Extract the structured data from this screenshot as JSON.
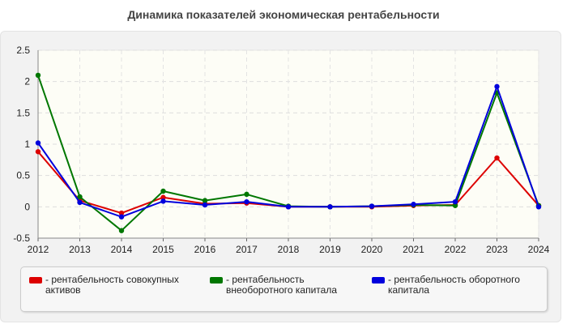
{
  "chart_data": {
    "type": "line",
    "title": "Динамика показателей экономическая рентабельности",
    "xlabel": "",
    "ylabel": "",
    "x": [
      "2012",
      "2013",
      "2014",
      "2015",
      "2016",
      "2017",
      "2018",
      "2019",
      "2020",
      "2021",
      "2022",
      "2023",
      "2024"
    ],
    "ylim": [
      -0.5,
      2.5
    ],
    "yticks": [
      "2.5",
      "2",
      "1.5",
      "1",
      "0.5",
      "0",
      "-0.5"
    ],
    "yticks_values": [
      2.5,
      2,
      1.5,
      1,
      0.5,
      0,
      -0.5
    ],
    "grid": true,
    "legend_position": "bottom",
    "series": [
      {
        "name": "- рентабельность совокупных\nактивов",
        "color": "#dd0000",
        "values": [
          0.88,
          0.1,
          -0.1,
          0.15,
          0.05,
          0.06,
          0.0,
          0.0,
          0.0,
          0.02,
          0.03,
          0.78,
          0.02
        ]
      },
      {
        "name": "- рентабельность\nвнеоборотного капитала",
        "color": "#007700",
        "values": [
          2.1,
          0.16,
          -0.38,
          0.25,
          0.1,
          0.2,
          0.01,
          0.0,
          0.01,
          0.03,
          0.02,
          1.82,
          0.02
        ]
      },
      {
        "name": "- рентабельность оборотного\nкапитала",
        "color": "#0000dd",
        "values": [
          1.02,
          0.07,
          -0.16,
          0.09,
          0.03,
          0.08,
          0.0,
          0.0,
          0.01,
          0.04,
          0.08,
          1.92,
          0.0
        ]
      }
    ]
  }
}
